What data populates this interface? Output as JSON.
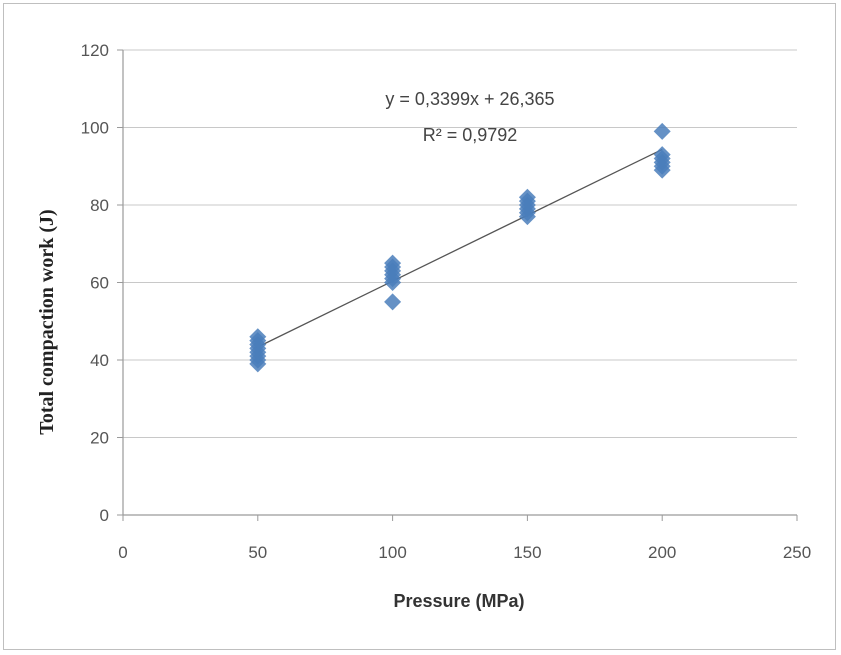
{
  "chart_data": {
    "type": "scatter",
    "title": "",
    "xlabel": "Pressure (MPa)",
    "ylabel": "Total compaction work (J)",
    "xlim": [
      0,
      250
    ],
    "ylim": [
      0,
      120
    ],
    "xticks": [
      "0",
      "50",
      "100",
      "150",
      "200",
      "250"
    ],
    "yticks": [
      "0",
      "20",
      "40",
      "60",
      "80",
      "100",
      "120"
    ],
    "grid": "horizontal",
    "marker_color": "#4a7ebb",
    "trendline_color": "#555555",
    "series": [
      {
        "points": [
          [
            50,
            39
          ],
          [
            50,
            40
          ],
          [
            50,
            41
          ],
          [
            50,
            42
          ],
          [
            50,
            43
          ],
          [
            50,
            44
          ],
          [
            50,
            45
          ],
          [
            50,
            46
          ],
          [
            100,
            55
          ],
          [
            100,
            60
          ],
          [
            100,
            61
          ],
          [
            100,
            62
          ],
          [
            100,
            63
          ],
          [
            100,
            64
          ],
          [
            100,
            65
          ],
          [
            150,
            77
          ],
          [
            150,
            78
          ],
          [
            150,
            79
          ],
          [
            150,
            80
          ],
          [
            150,
            81
          ],
          [
            150,
            82
          ],
          [
            200,
            89
          ],
          [
            200,
            90
          ],
          [
            200,
            91
          ],
          [
            200,
            92
          ],
          [
            200,
            93
          ],
          [
            200,
            99
          ]
        ]
      }
    ],
    "trendline": {
      "slope": 0.3399,
      "intercept": 26.365,
      "x_from": 50,
      "x_to": 200
    },
    "annotations": {
      "equation": "y = 0,3399x + 26,365",
      "r_squared": "R² = 0,9792"
    }
  }
}
